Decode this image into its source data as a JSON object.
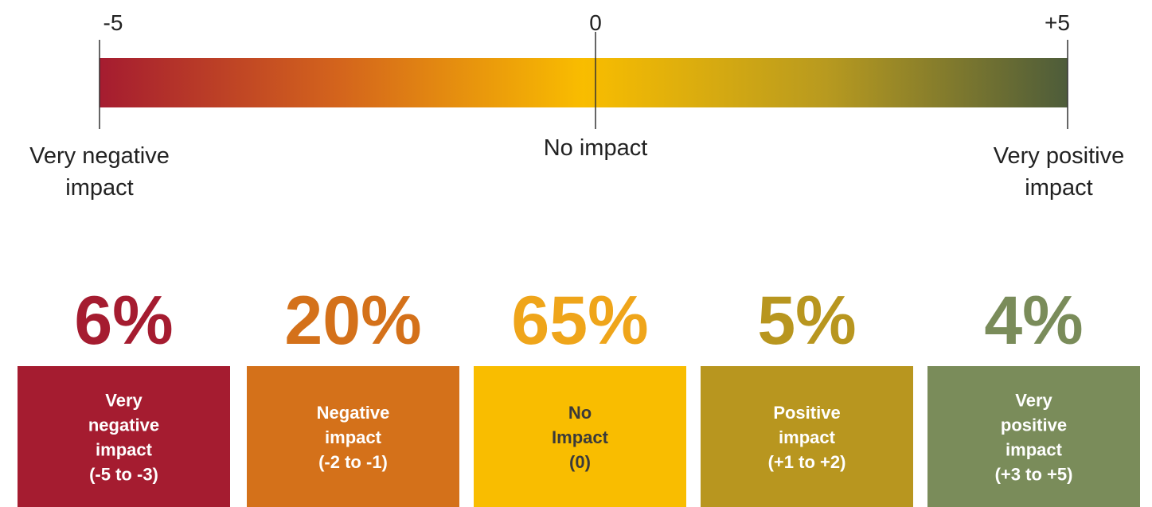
{
  "scale": {
    "ticks": [
      "-5",
      "0",
      "+5"
    ],
    "labels": [
      [
        "Very negative",
        "impact"
      ],
      [
        "No impact"
      ],
      [
        "Very positive",
        "impact"
      ]
    ]
  },
  "groups": [
    {
      "percent": "6%",
      "label": [
        "Very",
        "negative",
        "impact",
        "(-5 to -3)"
      ],
      "color": "#a51c30",
      "percent_color": "#a51c30",
      "text_color": "#ffffff"
    },
    {
      "percent": "20%",
      "label": [
        "Negative",
        "impact",
        "(-2 to -1)"
      ],
      "color": "#d4711a",
      "percent_color": "#d4711a",
      "text_color": "#ffffff"
    },
    {
      "percent": "65%",
      "label": [
        "No",
        "Impact",
        "(0)"
      ],
      "color": "#f9bd00",
      "percent_color": "#efa51a",
      "text_color": "#3a3a3a"
    },
    {
      "percent": "5%",
      "label": [
        "Positive",
        "impact",
        "(+1 to +2)"
      ],
      "color": "#b8961f",
      "percent_color": "#b8961f",
      "text_color": "#ffffff"
    },
    {
      "percent": "4%",
      "label": [
        "Very",
        "positive",
        "impact",
        "(+3 to +5)"
      ],
      "color": "#7a8c5a",
      "percent_color": "#7a8c5a",
      "text_color": "#ffffff"
    }
  ]
}
